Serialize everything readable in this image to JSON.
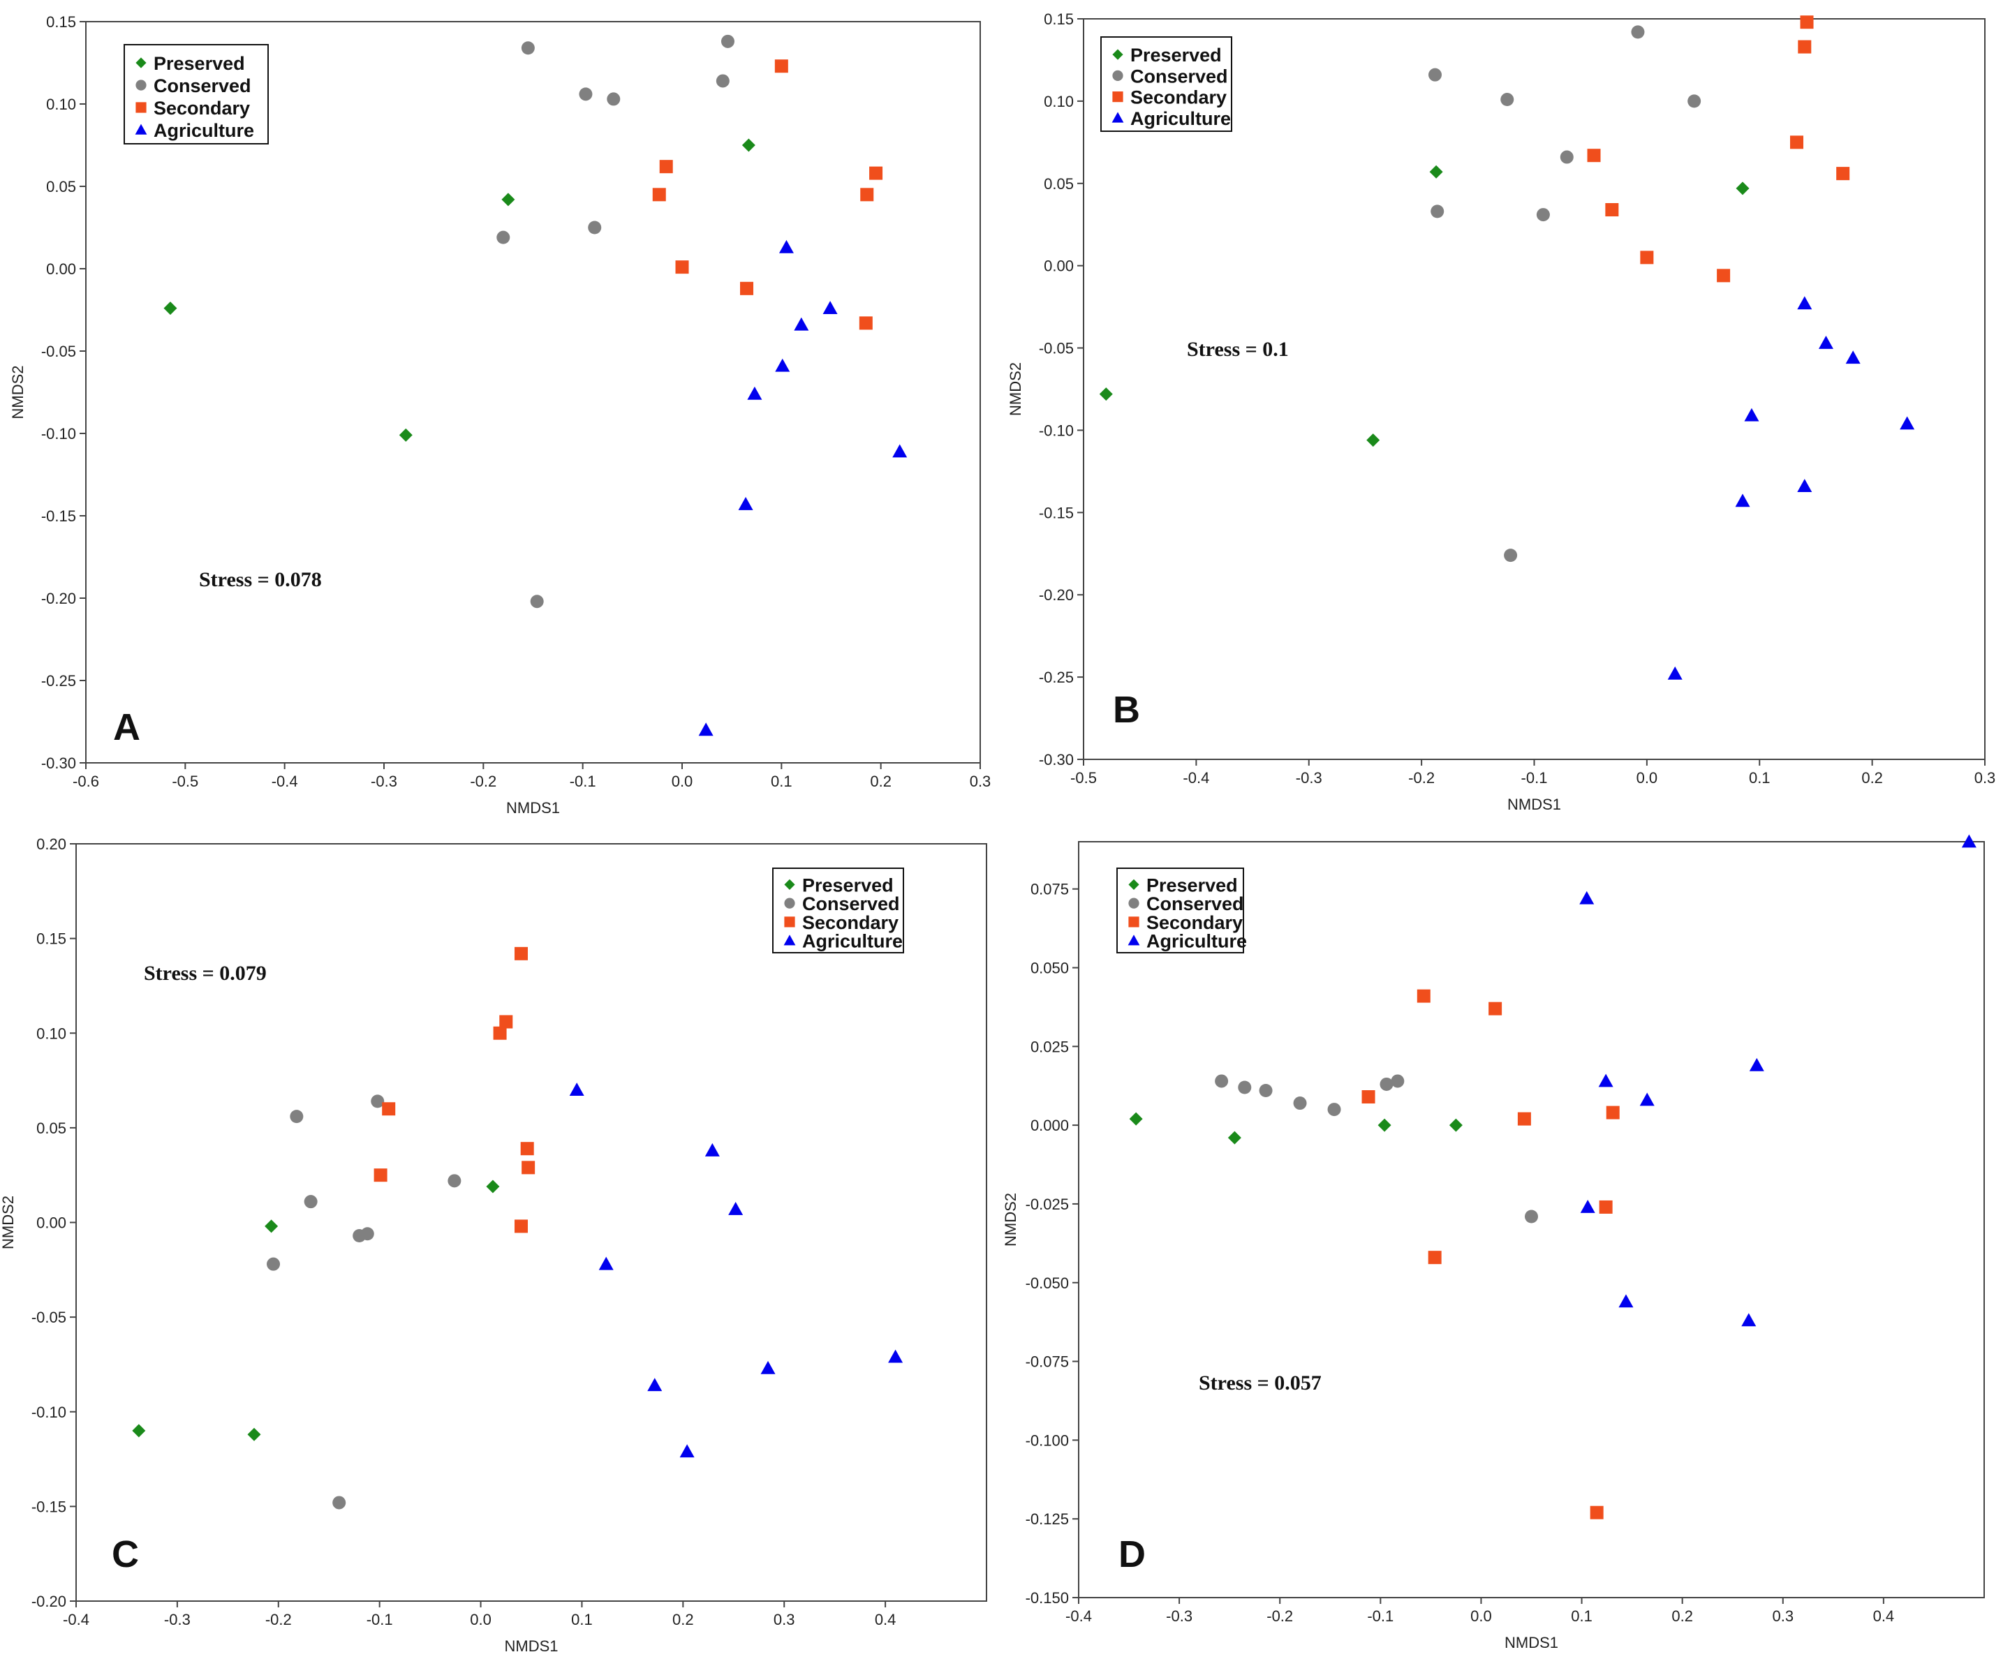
{
  "colors": {
    "Preserved": "#1a8a1a",
    "Conserved": "#808080",
    "Secondary": "#f04e1c",
    "Agriculture": "#0000ee"
  },
  "markers": {
    "Preserved": "diamond",
    "Conserved": "circle",
    "Secondary": "square",
    "Agriculture": "triangle"
  },
  "chart_data": [
    {
      "type": "scatter",
      "panel": "A",
      "xlabel": "NMDS1",
      "ylabel": "NMDS2",
      "xlim": [
        -0.6,
        0.3
      ],
      "ylim": [
        -0.3,
        0.15
      ],
      "xticks": [
        "-0.6",
        "-0.5",
        "-0.4",
        "-0.3",
        "-0.2",
        "-0.1",
        "0.0",
        "0.1",
        "0.2",
        "0.3"
      ],
      "yticks": [
        "0.15",
        "0.10",
        "0.05",
        "0.00",
        "-0.05",
        "-0.10",
        "-0.15",
        "-0.20",
        "-0.25",
        "-0.30"
      ],
      "stress": "Stress = 0.078",
      "legend": [
        "Preserved",
        "Conserved",
        "Secondary",
        "Agriculture"
      ],
      "legend_position": "top-left",
      "series": [
        {
          "name": "Preserved",
          "x": [
            -0.515,
            -0.278,
            -0.175,
            0.067
          ],
          "y": [
            -0.024,
            -0.101,
            0.042,
            0.075
          ]
        },
        {
          "name": "Conserved",
          "x": [
            -0.155,
            -0.097,
            -0.069,
            0.046,
            0.041,
            -0.088,
            -0.18,
            -0.146
          ],
          "y": [
            0.134,
            0.106,
            0.103,
            0.138,
            0.114,
            0.025,
            0.019,
            -0.202
          ]
        },
        {
          "name": "Secondary",
          "x": [
            0.1,
            0.195,
            0.186,
            -0.016,
            -0.023,
            0.0,
            0.065,
            0.185
          ],
          "y": [
            0.123,
            0.058,
            0.045,
            0.062,
            0.045,
            0.001,
            -0.012,
            -0.033
          ]
        },
        {
          "name": "Agriculture",
          "x": [
            0.105,
            0.149,
            0.12,
            0.101,
            0.073,
            0.219,
            0.064,
            0.024
          ],
          "y": [
            0.013,
            -0.024,
            -0.034,
            -0.059,
            -0.076,
            -0.111,
            -0.143,
            -0.28
          ]
        }
      ]
    },
    {
      "type": "scatter",
      "panel": "B",
      "xlabel": "NMDS1",
      "ylabel": "NMDS2",
      "xlim": [
        -0.5,
        0.3
      ],
      "ylim": [
        -0.3,
        0.15
      ],
      "xticks": [
        "-0.5",
        "-0.4",
        "-0.3",
        "-0.2",
        "-0.1",
        "0.0",
        "0.1",
        "0.2",
        "0.3"
      ],
      "yticks": [
        "0.15",
        "0.10",
        "0.05",
        "0.00",
        "-0.05",
        "-0.10",
        "-0.15",
        "-0.20",
        "-0.25",
        "-0.30"
      ],
      "stress": "Stress = 0.1",
      "legend": [
        "Preserved",
        "Conserved",
        "Secondary",
        "Agriculture"
      ],
      "legend_position": "top-left",
      "series": [
        {
          "name": "Preserved",
          "x": [
            -0.48,
            -0.243,
            -0.187,
            0.085
          ],
          "y": [
            -0.078,
            -0.106,
            0.057,
            0.047
          ]
        },
        {
          "name": "Conserved",
          "x": [
            -0.008,
            -0.188,
            -0.124,
            0.042,
            -0.071,
            -0.186,
            -0.092,
            -0.121
          ],
          "y": [
            0.142,
            0.116,
            0.101,
            0.1,
            0.066,
            0.033,
            0.031,
            -0.176
          ]
        },
        {
          "name": "Secondary",
          "x": [
            0.142,
            0.14,
            0.133,
            0.174,
            -0.047,
            -0.031,
            0.0,
            0.068
          ],
          "y": [
            0.148,
            0.133,
            0.075,
            0.056,
            0.067,
            0.034,
            0.005,
            -0.006
          ]
        },
        {
          "name": "Agriculture",
          "x": [
            0.14,
            0.159,
            0.183,
            0.093,
            0.231,
            0.085,
            0.14,
            0.025
          ],
          "y": [
            -0.023,
            -0.047,
            -0.056,
            -0.091,
            -0.096,
            -0.143,
            -0.134,
            -0.248
          ]
        }
      ]
    },
    {
      "type": "scatter",
      "panel": "C",
      "xlabel": "NMDS1",
      "ylabel": "NMDS2",
      "xlim": [
        -0.4,
        0.5
      ],
      "ylim": [
        -0.2,
        0.2
      ],
      "xticks": [
        "-0.4",
        "-0.3",
        "-0.2",
        "-0.1",
        "0.0",
        "0.1",
        "0.2",
        "0.3",
        "0.4"
      ],
      "yticks": [
        "0.20",
        "0.15",
        "0.10",
        "0.05",
        "0.00",
        "-0.05",
        "-0.10",
        "-0.15",
        "-0.20"
      ],
      "stress": "Stress = 0.079",
      "legend": [
        "Preserved",
        "Conserved",
        "Secondary",
        "Agriculture"
      ],
      "legend_position": "top-right",
      "series": [
        {
          "name": "Preserved",
          "x": [
            -0.338,
            -0.224,
            -0.207,
            0.012
          ],
          "y": [
            -0.11,
            -0.112,
            -0.002,
            0.019
          ]
        },
        {
          "name": "Conserved",
          "x": [
            -0.182,
            -0.102,
            -0.168,
            -0.026,
            -0.12,
            -0.112,
            -0.205,
            -0.14
          ],
          "y": [
            0.056,
            0.064,
            0.011,
            0.022,
            -0.007,
            -0.006,
            -0.022,
            -0.148
          ]
        },
        {
          "name": "Secondary",
          "x": [
            0.04,
            0.025,
            0.019,
            -0.091,
            0.046,
            0.047,
            -0.099,
            0.04
          ],
          "y": [
            0.142,
            0.106,
            0.1,
            0.06,
            0.039,
            0.029,
            0.025,
            -0.002
          ]
        },
        {
          "name": "Agriculture",
          "x": [
            0.095,
            0.229,
            0.252,
            0.124,
            0.172,
            0.284,
            0.41,
            0.204
          ],
          "y": [
            0.07,
            0.038,
            0.007,
            -0.022,
            -0.086,
            -0.077,
            -0.071,
            -0.121
          ]
        }
      ]
    },
    {
      "type": "scatter",
      "panel": "D",
      "xlabel": "NMDS1",
      "ylabel": "NMDS2",
      "xlim": [
        -0.4,
        0.5
      ],
      "ylim": [
        -0.15,
        0.09
      ],
      "xticks": [
        "-0.4",
        "-0.3",
        "-0.2",
        "-0.1",
        "0.0",
        "0.1",
        "0.2",
        "0.3",
        "0.4"
      ],
      "yticks": [
        "0.075",
        "0.050",
        "0.025",
        "0.000",
        "-0.025",
        "-0.050",
        "-0.075",
        "-0.100",
        "-0.125",
        "-0.150"
      ],
      "stress": "Stress = 0.057",
      "legend": [
        "Preserved",
        "Conserved",
        "Secondary",
        "Agriculture"
      ],
      "legend_position": "top-left",
      "series": [
        {
          "name": "Preserved",
          "x": [
            -0.343,
            -0.245,
            -0.096,
            -0.025
          ],
          "y": [
            0.002,
            -0.004,
            0.0,
            0.0
          ]
        },
        {
          "name": "Conserved",
          "x": [
            -0.258,
            -0.235,
            -0.214,
            -0.18,
            -0.146,
            -0.094,
            -0.083,
            0.05
          ],
          "y": [
            0.014,
            0.012,
            0.011,
            0.007,
            0.005,
            0.013,
            0.014,
            -0.029
          ]
        },
        {
          "name": "Secondary",
          "x": [
            -0.057,
            0.014,
            -0.112,
            0.043,
            0.131,
            0.124,
            -0.046,
            0.115
          ],
          "y": [
            0.041,
            0.037,
            0.009,
            0.002,
            0.004,
            -0.026,
            -0.042,
            -0.123
          ]
        },
        {
          "name": "Agriculture",
          "x": [
            0.485,
            0.105,
            0.124,
            0.165,
            0.274,
            0.106,
            0.144,
            0.266
          ],
          "y": [
            0.09,
            0.072,
            0.014,
            0.008,
            0.019,
            -0.026,
            -0.056,
            -0.062
          ]
        }
      ]
    }
  ]
}
